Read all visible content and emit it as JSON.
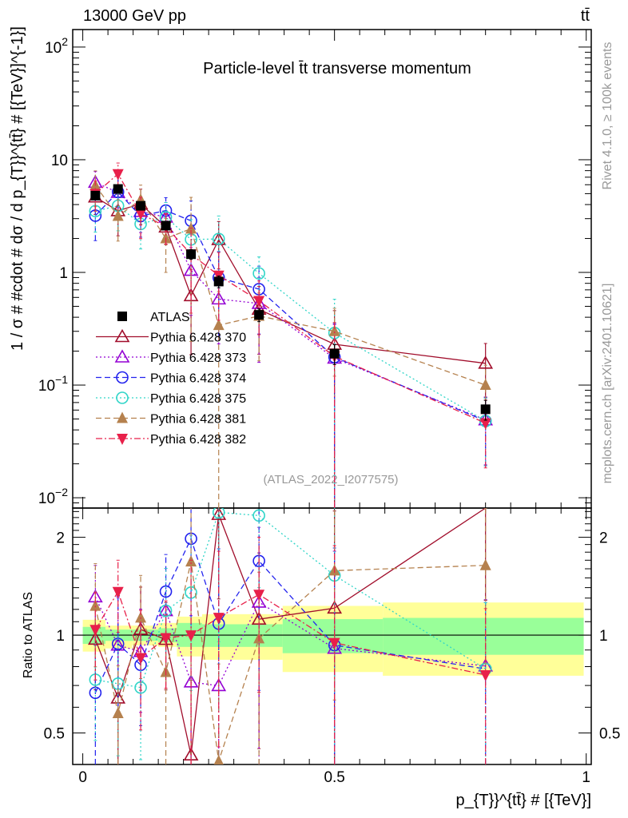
{
  "header": {
    "left": "13000 GeV pp",
    "right": "tt̄"
  },
  "side_labels": {
    "rivet": "Rivet 4.1.0, ≥ 100k events",
    "mcplots": "mcplots.cern.ch [arXiv:2401.10621]"
  },
  "chart_data": {
    "type": "scatter",
    "title": "Particle-level t̄t transverse momentum",
    "analysis_label": "(ATLAS_2022_I2077575)",
    "ylabel": "1 / σ # #cdot # dσ / d p_{T}}^{tt̄} # [{TeV}]^{-1}]",
    "xlabel": "p_{T}}^{tt̄} # [{TeV}]",
    "ratio_ylabel": "Ratio to ATLAS",
    "xlim": [
      -0.02,
      1.01
    ],
    "ylim": [
      0.0081,
      143
    ],
    "yscale": "log",
    "ratio_ylim": [
      0.4,
      2.46
    ],
    "ratio_yscale": "log",
    "x_ticks": [
      "0",
      "0.5",
      "1"
    ],
    "x_tick_values": [
      0,
      0.5,
      1
    ],
    "y_ticks": [
      {
        "base": "10",
        "exp": "2",
        "v": 100
      },
      {
        "base": "10",
        "exp": "",
        "v": 10
      },
      {
        "base": "1",
        "exp": "",
        "v": 1
      },
      {
        "base": "10",
        "exp": "−1",
        "v": 0.1
      },
      {
        "base": "10",
        "exp": "−2",
        "v": 0.01
      }
    ],
    "ratio_ticks": [
      {
        "label": "0.5",
        "v": 0.5
      },
      {
        "label": "1",
        "v": 1
      },
      {
        "label": "2",
        "v": 2
      }
    ],
    "x": [
      0.025,
      0.07,
      0.115,
      0.165,
      0.215,
      0.27,
      0.35,
      0.5,
      0.8
    ],
    "bins": [
      0,
      0.045,
      0.098,
      0.15,
      0.187,
      0.237,
      0.397,
      0.596,
      0.995
    ],
    "band_total": {
      "lo": [
        0.89,
        0.91,
        0.93,
        0.92,
        0.86,
        0.84,
        0.77,
        0.75
      ],
      "hi": [
        1.115,
        1.07,
        1.07,
        1.09,
        1.14,
        1.16,
        1.23,
        1.26
      ],
      "color": "#ffff99"
    },
    "band_stat": {
      "lo": [
        0.94,
        0.96,
        0.96,
        0.95,
        0.92,
        0.92,
        0.88,
        0.87
      ],
      "hi": [
        1.06,
        1.04,
        1.04,
        1.05,
        1.09,
        1.08,
        1.12,
        1.13
      ],
      "color": "#99ff99"
    },
    "legend_position": "center-left",
    "series": [
      {
        "name": "ATLAS",
        "color": "#000000",
        "marker": "square",
        "dash": "none",
        "values": [
          4.8,
          5.5,
          3.9,
          2.6,
          1.45,
          0.83,
          0.42,
          0.19,
          0.061
        ],
        "rel_err": [
          0.08,
          0.06,
          0.05,
          0.06,
          0.1,
          0.12,
          0.13,
          0.2,
          0.2
        ]
      },
      {
        "name": "Pythia 6.428 370",
        "color": "#a10d2b",
        "marker": "triangle-open",
        "dash": "solid",
        "values": [
          4.66,
          3.52,
          4.06,
          2.52,
          0.62,
          1.95,
          0.47,
          0.23,
          0.156
        ],
        "rel_err": [
          0.3,
          0.4,
          0.35,
          0.3,
          0.7,
          0.45,
          0.6,
          0.99,
          0.5
        ]
      },
      {
        "name": "Pythia 6.428 373",
        "color": "#9400d3",
        "marker": "triangle-open",
        "dash": "dotted",
        "values": [
          6.29,
          5.12,
          3.47,
          3.09,
          1.04,
          0.58,
          0.53,
          0.173,
          0.049
        ],
        "rel_err": [
          0.25,
          0.4,
          0.35,
          0.35,
          0.6,
          0.6,
          0.7,
          0.99,
          0.6
        ]
      },
      {
        "name": "Pythia 6.428 374",
        "color": "#2323ee",
        "marker": "circle-open",
        "dash": "dashed",
        "values": [
          3.19,
          5.17,
          3.16,
          3.54,
          2.87,
          0.9,
          0.71,
          0.177,
          0.048
        ],
        "rel_err": [
          0.4,
          0.4,
          0.35,
          0.3,
          0.5,
          0.7,
          0.6,
          0.99,
          0.6
        ]
      },
      {
        "name": "Pythia 6.428 375",
        "color": "#30d5c8",
        "marker": "circle-open",
        "dash": "dotted",
        "values": [
          3.5,
          3.9,
          2.69,
          3.09,
          1.96,
          1.98,
          0.98,
          0.29,
          0.048
        ],
        "rel_err": [
          0.35,
          0.4,
          0.4,
          0.35,
          0.5,
          0.6,
          0.4,
          0.99,
          0.6
        ]
      },
      {
        "name": "Pythia 6.428 381",
        "color": "#b5814e",
        "marker": "triangle-filled",
        "dash": "dashed",
        "values": [
          5.9,
          3.16,
          4.41,
          2.0,
          2.44,
          0.34,
          0.41,
          0.3,
          0.1
        ],
        "rel_err": [
          0.35,
          0.4,
          0.35,
          0.5,
          0.9,
          0.99,
          0.6,
          0.6,
          0.5
        ]
      },
      {
        "name": "Pythia 6.428 382",
        "color": "#e8204a",
        "marker": "triangle-down-filled",
        "dash": "dashdot",
        "values": [
          4.99,
          7.48,
          3.32,
          2.55,
          1.45,
          0.94,
          0.56,
          0.18,
          0.046
        ],
        "rel_err": [
          0.3,
          0.25,
          0.4,
          0.3,
          0.7,
          0.6,
          0.5,
          0.99,
          0.6
        ]
      }
    ]
  }
}
